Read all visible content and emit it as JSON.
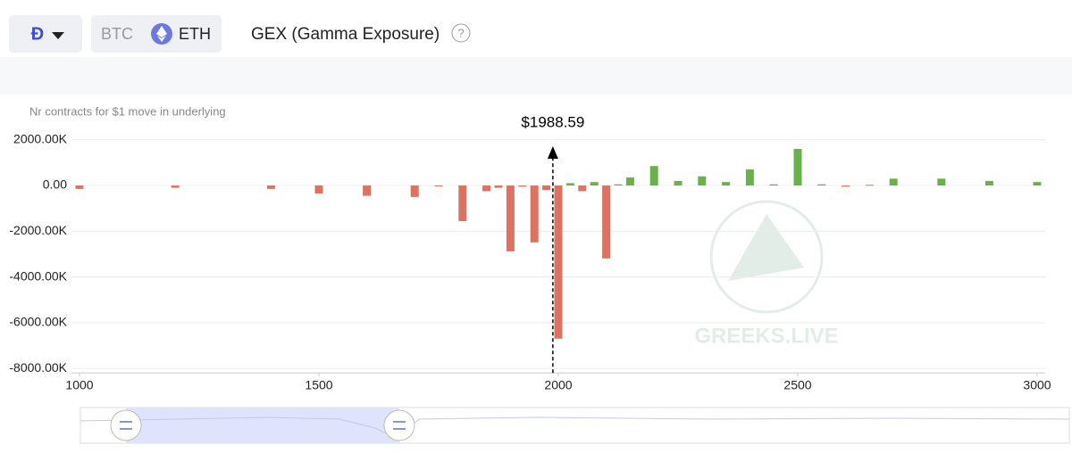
{
  "header": {
    "assets": [
      "BTC",
      "ETH"
    ],
    "title": "GEX (Gamma Exposure)",
    "help": "?"
  },
  "watermark": "GREEKS.LIVE",
  "chart_data": {
    "type": "bar",
    "y_label": "Nr contracts for $1 move in underlying",
    "x": [
      1000,
      1200,
      1400,
      1500,
      1600,
      1700,
      1750,
      1800,
      1850,
      1875,
      1900,
      1925,
      1950,
      1975,
      2000,
      2025,
      2050,
      2075,
      2100,
      2125,
      2150,
      2200,
      2250,
      2300,
      2350,
      2400,
      2450,
      2500,
      2550,
      2600,
      2650,
      2700,
      2800,
      2900,
      3000
    ],
    "values": [
      -150,
      -100,
      -150,
      -350,
      -450,
      -500,
      -30,
      -1560,
      -250,
      -100,
      -2880,
      -50,
      -2490,
      -200,
      -6700,
      100,
      -250,
      150,
      -3190,
      50,
      350,
      850,
      200,
      400,
      150,
      700,
      50,
      1600,
      50,
      -50,
      30,
      300,
      300,
      200,
      150
    ],
    "positive_color": "#6ab04c",
    "negative_color": "#dc7362",
    "xlim": [
      1000,
      3000
    ],
    "xticks": [
      1000,
      1500,
      2000,
      2500,
      3000
    ],
    "ylim": [
      -8200,
      2200
    ],
    "yticks": [
      {
        "value": 2000,
        "label": "2000.00K"
      },
      {
        "value": 0,
        "label": "0.00"
      },
      {
        "value": -2000,
        "label": "-2000.00K"
      },
      {
        "value": -4000,
        "label": "-4000.00K"
      },
      {
        "value": -6000,
        "label": "-6000.00K"
      },
      {
        "value": -8000,
        "label": "-8000.00K"
      }
    ],
    "grid": true,
    "price_marker": {
      "value": 1988.59,
      "label": "$1988.59"
    }
  }
}
